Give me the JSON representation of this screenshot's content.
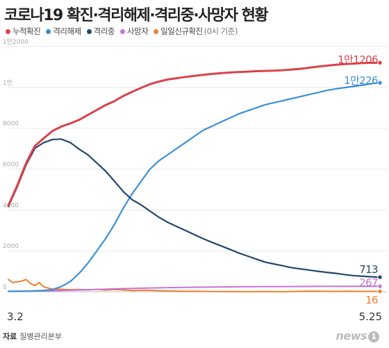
{
  "title": "코로나19 확진·격리해제·격리중·사망자 현황",
  "legend_note": "(0시 기준)",
  "source_label": "자료",
  "source_value": "질병관리본부",
  "logo_text": "news",
  "logo_badge": "1",
  "chart_data": {
    "type": "line",
    "x_start_label": "3.2",
    "x_end_label": "5.25",
    "days": 85,
    "ylim": [
      0,
      12000
    ],
    "y_ticks": [
      {
        "value": 0,
        "label": "0"
      },
      {
        "value": 2000,
        "label": "2000"
      },
      {
        "value": 4000,
        "label": "4000"
      },
      {
        "value": 6000,
        "label": "6000"
      },
      {
        "value": 8000,
        "label": "8000"
      },
      {
        "value": 10000,
        "label": "1만"
      },
      {
        "value": 12000,
        "label": "1만2000"
      }
    ],
    "series": [
      {
        "name": "누적확진",
        "color": "#d9434a",
        "end_label": "1만1206",
        "points": [
          [
            0,
            4212
          ],
          [
            2,
            5186
          ],
          [
            4,
            6284
          ],
          [
            6,
            7134
          ],
          [
            8,
            7513
          ],
          [
            10,
            7869
          ],
          [
            12,
            8086
          ],
          [
            14,
            8236
          ],
          [
            16,
            8413
          ],
          [
            18,
            8652
          ],
          [
            20,
            8897
          ],
          [
            22,
            9137
          ],
          [
            24,
            9332
          ],
          [
            26,
            9583
          ],
          [
            28,
            9786
          ],
          [
            30,
            9976
          ],
          [
            32,
            10156
          ],
          [
            34,
            10284
          ],
          [
            36,
            10384
          ],
          [
            38,
            10450
          ],
          [
            40,
            10512
          ],
          [
            42,
            10564
          ],
          [
            44,
            10613
          ],
          [
            46,
            10661
          ],
          [
            48,
            10694
          ],
          [
            50,
            10728
          ],
          [
            52,
            10752
          ],
          [
            54,
            10774
          ],
          [
            56,
            10793
          ],
          [
            58,
            10806
          ],
          [
            60,
            10822
          ],
          [
            62,
            10840
          ],
          [
            64,
            10874
          ],
          [
            66,
            10909
          ],
          [
            68,
            10962
          ],
          [
            70,
            11018
          ],
          [
            72,
            11065
          ],
          [
            74,
            11110
          ],
          [
            76,
            11142
          ],
          [
            78,
            11165
          ],
          [
            80,
            11190
          ],
          [
            82,
            11200
          ],
          [
            84,
            11206
          ]
        ]
      },
      {
        "name": "격리해제",
        "color": "#3b8fd6",
        "end_label": "1만226",
        "points": [
          [
            0,
            22
          ],
          [
            4,
            28
          ],
          [
            8,
            60
          ],
          [
            10,
            110
          ],
          [
            12,
            250
          ],
          [
            14,
            500
          ],
          [
            16,
            900
          ],
          [
            18,
            1400
          ],
          [
            20,
            2000
          ],
          [
            22,
            2600
          ],
          [
            24,
            3300
          ],
          [
            26,
            4100
          ],
          [
            28,
            4800
          ],
          [
            30,
            5400
          ],
          [
            32,
            6000
          ],
          [
            34,
            6400
          ],
          [
            36,
            6700
          ],
          [
            38,
            7000
          ],
          [
            40,
            7300
          ],
          [
            42,
            7600
          ],
          [
            44,
            7900
          ],
          [
            46,
            8100
          ],
          [
            48,
            8300
          ],
          [
            50,
            8500
          ],
          [
            52,
            8700
          ],
          [
            54,
            8850
          ],
          [
            56,
            9000
          ],
          [
            58,
            9150
          ],
          [
            60,
            9250
          ],
          [
            62,
            9350
          ],
          [
            64,
            9450
          ],
          [
            66,
            9550
          ],
          [
            68,
            9650
          ],
          [
            70,
            9750
          ],
          [
            72,
            9850
          ],
          [
            74,
            9930
          ],
          [
            76,
            9990
          ],
          [
            78,
            10050
          ],
          [
            80,
            10110
          ],
          [
            82,
            10180
          ],
          [
            84,
            10226
          ]
        ]
      },
      {
        "name": "격리중",
        "color": "#22476b",
        "end_label": "713",
        "points": [
          [
            0,
            4168
          ],
          [
            2,
            5120
          ],
          [
            4,
            6200
          ],
          [
            6,
            7020
          ],
          [
            8,
            7300
          ],
          [
            10,
            7450
          ],
          [
            12,
            7470
          ],
          [
            14,
            7300
          ],
          [
            16,
            6980
          ],
          [
            18,
            6700
          ],
          [
            20,
            6300
          ],
          [
            22,
            5900
          ],
          [
            24,
            5400
          ],
          [
            26,
            4900
          ],
          [
            28,
            4500
          ],
          [
            30,
            4250
          ],
          [
            32,
            3950
          ],
          [
            34,
            3650
          ],
          [
            36,
            3400
          ],
          [
            38,
            3200
          ],
          [
            40,
            3000
          ],
          [
            42,
            2800
          ],
          [
            44,
            2600
          ],
          [
            46,
            2420
          ],
          [
            48,
            2250
          ],
          [
            50,
            2080
          ],
          [
            52,
            1900
          ],
          [
            54,
            1750
          ],
          [
            56,
            1600
          ],
          [
            58,
            1450
          ],
          [
            60,
            1360
          ],
          [
            62,
            1270
          ],
          [
            64,
            1180
          ],
          [
            66,
            1120
          ],
          [
            68,
            1060
          ],
          [
            70,
            1000
          ],
          [
            72,
            950
          ],
          [
            74,
            900
          ],
          [
            76,
            840
          ],
          [
            78,
            790
          ],
          [
            80,
            760
          ],
          [
            82,
            730
          ],
          [
            84,
            713
          ]
        ]
      },
      {
        "name": "사망자",
        "color": "#c773d8",
        "end_label": "267",
        "points": [
          [
            0,
            22
          ],
          [
            6,
            35
          ],
          [
            12,
            60
          ],
          [
            18,
            100
          ],
          [
            24,
            140
          ],
          [
            30,
            174
          ],
          [
            36,
            200
          ],
          [
            42,
            220
          ],
          [
            48,
            236
          ],
          [
            54,
            244
          ],
          [
            60,
            250
          ],
          [
            66,
            256
          ],
          [
            72,
            262
          ],
          [
            78,
            264
          ],
          [
            84,
            267
          ]
        ]
      },
      {
        "name": "일일신규확진",
        "color": "#ee7f2e",
        "end_label": "16",
        "points": [
          [
            0,
            600
          ],
          [
            1,
            450
          ],
          [
            2,
            480
          ],
          [
            3,
            520
          ],
          [
            4,
            600
          ],
          [
            5,
            400
          ],
          [
            6,
            300
          ],
          [
            7,
            450
          ],
          [
            8,
            240
          ],
          [
            9,
            180
          ],
          [
            10,
            130
          ],
          [
            12,
            120
          ],
          [
            14,
            100
          ],
          [
            16,
            110
          ],
          [
            18,
            90
          ],
          [
            20,
            120
          ],
          [
            22,
            80
          ],
          [
            24,
            110
          ],
          [
            26,
            90
          ],
          [
            28,
            60
          ],
          [
            30,
            75
          ],
          [
            32,
            70
          ],
          [
            34,
            50
          ],
          [
            36,
            40
          ],
          [
            38,
            30
          ],
          [
            40,
            20
          ],
          [
            42,
            25
          ],
          [
            44,
            18
          ],
          [
            46,
            12
          ],
          [
            48,
            10
          ],
          [
            50,
            8
          ],
          [
            52,
            6
          ],
          [
            54,
            4
          ],
          [
            56,
            10
          ],
          [
            58,
            8
          ],
          [
            60,
            6
          ],
          [
            62,
            4
          ],
          [
            64,
            10
          ],
          [
            66,
            20
          ],
          [
            68,
            30
          ],
          [
            70,
            25
          ],
          [
            72,
            20
          ],
          [
            74,
            15
          ],
          [
            76,
            25
          ],
          [
            78,
            20
          ],
          [
            80,
            15
          ],
          [
            82,
            20
          ],
          [
            84,
            16
          ]
        ]
      }
    ]
  }
}
